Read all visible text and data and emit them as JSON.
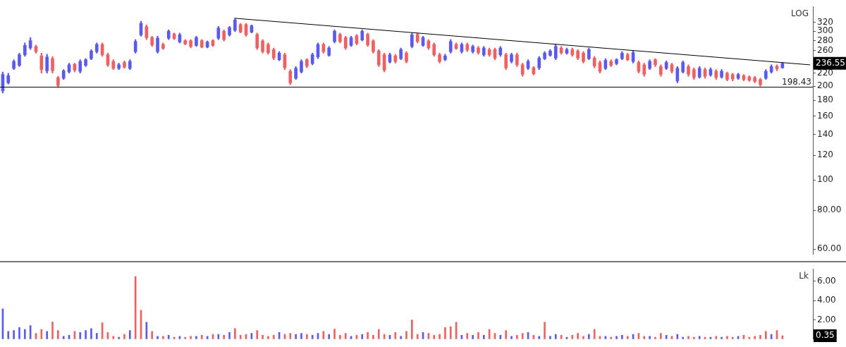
{
  "chart_data": [
    {
      "type": "candlestick",
      "categories": [
        null,
        null,
        null,
        null,
        null,
        null,
        null,
        null,
        null,
        null,
        null,
        null,
        null,
        null,
        null,
        null,
        null,
        null,
        null,
        null,
        null,
        null,
        null,
        null,
        null,
        null,
        null,
        null,
        null,
        null,
        null,
        null,
        null,
        null,
        null,
        null,
        null,
        null,
        null,
        null,
        null,
        null,
        null,
        null,
        null,
        null,
        null,
        null,
        null,
        null,
        null,
        null,
        null,
        null,
        null,
        null,
        null,
        null,
        null,
        null,
        null,
        null,
        null,
        null,
        null,
        null,
        null,
        null,
        null,
        null,
        null,
        null,
        null,
        null,
        null,
        null,
        null,
        null,
        null,
        null,
        null,
        null,
        null,
        null,
        null,
        null,
        null,
        null,
        null,
        null,
        null,
        null,
        null,
        null,
        null,
        null,
        null,
        null,
        null,
        null,
        null,
        null,
        null,
        null,
        null,
        null,
        null,
        null,
        null,
        null,
        null,
        null,
        null,
        null,
        null,
        null,
        null,
        null,
        null,
        null,
        null,
        null,
        null,
        null,
        null,
        null,
        null,
        null,
        null,
        null,
        null,
        null,
        null,
        null,
        null,
        null,
        null,
        null,
        null,
        null,
        null,
        null,
        null,
        null,
        null,
        null,
        null
      ],
      "ohlc": [
        [
          193,
          222,
          190,
          218
        ],
        [
          205,
          220,
          203,
          216
        ],
        [
          228,
          243,
          226,
          240
        ],
        [
          233,
          255,
          231,
          252
        ],
        [
          252,
          275,
          249,
          270
        ],
        [
          265,
          286,
          262,
          280
        ],
        [
          268,
          271,
          255,
          258
        ],
        [
          250,
          255,
          220,
          226
        ],
        [
          224,
          253,
          220,
          248
        ],
        [
          245,
          249,
          220,
          224
        ],
        [
          213,
          215,
          198,
          201
        ],
        [
          212,
          226,
          210,
          224
        ],
        [
          222,
          237,
          220,
          234
        ],
        [
          235,
          237,
          222,
          225
        ],
        [
          223,
          243,
          220,
          240
        ],
        [
          233,
          245,
          231,
          243
        ],
        [
          245,
          262,
          243,
          259
        ],
        [
          258,
          275,
          255,
          272
        ],
        [
          272,
          275,
          249,
          252
        ],
        [
          252,
          255,
          231,
          234
        ],
        [
          240,
          243,
          226,
          228
        ],
        [
          228,
          237,
          226,
          234
        ],
        [
          238,
          241,
          228,
          230
        ],
        [
          228,
          243,
          226,
          240
        ],
        [
          258,
          282,
          255,
          278
        ],
        [
          292,
          323,
          289,
          318
        ],
        [
          310,
          314,
          282,
          286
        ],
        [
          286,
          289,
          268,
          271
        ],
        [
          258,
          289,
          255,
          285
        ],
        [
          272,
          275,
          262,
          264
        ],
        [
          285,
          303,
          282,
          300
        ],
        [
          294,
          296,
          282,
          284
        ],
        [
          277,
          296,
          275,
          292
        ],
        [
          280,
          282,
          271,
          273
        ],
        [
          280,
          282,
          265,
          268
        ],
        [
          270,
          289,
          268,
          286
        ],
        [
          280,
          282,
          265,
          267
        ],
        [
          267,
          279,
          265,
          277
        ],
        [
          280,
          282,
          268,
          270
        ],
        [
          285,
          311,
          282,
          307
        ],
        [
          300,
          303,
          279,
          282
        ],
        [
          292,
          311,
          289,
          308
        ],
        [
          302,
          330,
          299,
          326
        ],
        [
          315,
          318,
          296,
          298
        ],
        [
          315,
          318,
          289,
          292
        ],
        [
          298,
          314,
          296,
          312
        ],
        [
          293,
          296,
          262,
          265
        ],
        [
          279,
          282,
          255,
          258
        ],
        [
          272,
          275,
          253,
          256
        ],
        [
          262,
          265,
          243,
          246
        ],
        [
          243,
          258,
          241,
          255
        ],
        [
          252,
          255,
          226,
          229
        ],
        [
          223,
          226,
          202,
          205
        ],
        [
          212,
          231,
          210,
          228
        ],
        [
          222,
          243,
          220,
          240
        ],
        [
          243,
          245,
          229,
          232
        ],
        [
          236,
          255,
          234,
          252
        ],
        [
          248,
          275,
          245,
          272
        ],
        [
          272,
          275,
          255,
          258
        ],
        [
          251,
          268,
          249,
          265
        ],
        [
          278,
          303,
          275,
          300
        ],
        [
          293,
          296,
          275,
          278
        ],
        [
          286,
          289,
          262,
          265
        ],
        [
          270,
          289,
          268,
          286
        ],
        [
          290,
          293,
          271,
          274
        ],
        [
          281,
          303,
          279,
          300
        ],
        [
          293,
          296,
          268,
          271
        ],
        [
          279,
          282,
          255,
          258
        ],
        [
          259,
          262,
          231,
          234
        ],
        [
          252,
          255,
          222,
          225
        ],
        [
          239,
          255,
          237,
          252
        ],
        [
          250,
          253,
          237,
          240
        ],
        [
          245,
          265,
          243,
          262
        ],
        [
          255,
          258,
          237,
          240
        ],
        [
          268,
          296,
          265,
          292
        ],
        [
          293,
          296,
          275,
          278
        ],
        [
          270,
          289,
          268,
          286
        ],
        [
          279,
          282,
          262,
          265
        ],
        [
          272,
          275,
          249,
          252
        ],
        [
          252,
          255,
          237,
          240
        ],
        [
          243,
          253,
          241,
          250
        ],
        [
          258,
          282,
          255,
          278
        ],
        [
          272,
          275,
          262,
          264
        ],
        [
          258,
          275,
          255,
          272
        ],
        [
          272,
          275,
          258,
          261
        ],
        [
          258,
          271,
          255,
          268
        ],
        [
          265,
          268,
          253,
          256
        ],
        [
          252,
          268,
          249,
          265
        ],
        [
          262,
          265,
          249,
          252
        ],
        [
          262,
          265,
          243,
          246
        ],
        [
          252,
          268,
          249,
          265
        ],
        [
          252,
          255,
          226,
          229
        ],
        [
          240,
          255,
          237,
          252
        ],
        [
          252,
          255,
          231,
          234
        ],
        [
          234,
          237,
          215,
          218
        ],
        [
          228,
          243,
          226,
          240
        ],
        [
          229,
          231,
          217,
          219
        ],
        [
          229,
          249,
          226,
          246
        ],
        [
          245,
          258,
          243,
          255
        ],
        [
          251,
          262,
          249,
          259
        ],
        [
          246,
          272,
          243,
          268
        ],
        [
          265,
          268,
          253,
          256
        ],
        [
          255,
          265,
          253,
          262
        ],
        [
          262,
          265,
          249,
          252
        ],
        [
          259,
          262,
          243,
          246
        ],
        [
          255,
          258,
          237,
          240
        ],
        [
          245,
          265,
          243,
          262
        ],
        [
          246,
          249,
          229,
          232
        ],
        [
          238,
          241,
          220,
          223
        ],
        [
          228,
          245,
          226,
          242
        ],
        [
          240,
          243,
          231,
          233
        ],
        [
          236,
          245,
          234,
          243
        ],
        [
          245,
          258,
          243,
          255
        ],
        [
          252,
          255,
          241,
          243
        ],
        [
          240,
          259,
          237,
          256
        ],
        [
          238,
          241,
          220,
          223
        ],
        [
          234,
          237,
          215,
          218
        ],
        [
          228,
          243,
          226,
          240
        ],
        [
          243,
          245,
          231,
          234
        ],
        [
          231,
          234,
          215,
          218
        ],
        [
          228,
          241,
          226,
          238
        ],
        [
          234,
          237,
          220,
          223
        ],
        [
          208,
          231,
          205,
          228
        ],
        [
          222,
          241,
          220,
          238
        ],
        [
          231,
          234,
          215,
          218
        ],
        [
          226,
          229,
          210,
          213
        ],
        [
          214,
          231,
          212,
          228
        ],
        [
          226,
          229,
          212,
          215
        ],
        [
          217,
          229,
          215,
          226
        ],
        [
          223,
          226,
          210,
          213
        ],
        [
          214,
          226,
          212,
          223
        ],
        [
          220,
          222,
          208,
          210
        ],
        [
          218,
          220,
          208,
          211
        ],
        [
          212,
          220,
          210,
          218
        ],
        [
          216,
          218,
          208,
          210
        ],
        [
          214,
          216,
          207,
          209
        ],
        [
          213,
          215,
          205,
          207
        ],
        [
          210,
          212,
          200,
          202
        ],
        [
          212,
          226,
          210,
          223
        ],
        [
          222,
          234,
          220,
          231
        ],
        [
          232,
          234,
          224,
          227
        ],
        [
          229,
          238,
          228,
          236.55
        ],
        null,
        null,
        null,
        null,
        null
      ],
      "colors": [
        "#5a5af0",
        "#5a5af0",
        "#5a5af0",
        "#5a5af0",
        "#5a5af0",
        "#5a5af0",
        "#f06060",
        "#f06060",
        "#5a5af0",
        "#f06060",
        "#f06060",
        "#5a5af0",
        "#5a5af0",
        "#f06060",
        "#5a5af0",
        "#5a5af0",
        "#5a5af0",
        "#5a5af0",
        "#f06060",
        "#f06060",
        "#f06060",
        "#5a5af0",
        "#f06060",
        "#5a5af0",
        "#5a5af0",
        "#5a5af0",
        "#f06060",
        "#f06060",
        "#5a5af0",
        "#f06060",
        "#5a5af0",
        "#f06060",
        "#5a5af0",
        "#f06060",
        "#f06060",
        "#5a5af0",
        "#f06060",
        "#5a5af0",
        "#f06060",
        "#5a5af0",
        "#f06060",
        "#5a5af0",
        "#5a5af0",
        "#f06060",
        "#f06060",
        "#5a5af0",
        "#f06060",
        "#f06060",
        "#f06060",
        "#f06060",
        "#5a5af0",
        "#f06060",
        "#f06060",
        "#5a5af0",
        "#5a5af0",
        "#f06060",
        "#5a5af0",
        "#5a5af0",
        "#f06060",
        "#5a5af0",
        "#5a5af0",
        "#f06060",
        "#f06060",
        "#5a5af0",
        "#f06060",
        "#5a5af0",
        "#f06060",
        "#f06060",
        "#f06060",
        "#f06060",
        "#5a5af0",
        "#f06060",
        "#5a5af0",
        "#f06060",
        "#5a5af0",
        "#f06060",
        "#5a5af0",
        "#f06060",
        "#f06060",
        "#f06060",
        "#5a5af0",
        "#5a5af0",
        "#f06060",
        "#5a5af0",
        "#f06060",
        "#5a5af0",
        "#f06060",
        "#5a5af0",
        "#f06060",
        "#f06060",
        "#5a5af0",
        "#f06060",
        "#5a5af0",
        "#f06060",
        "#f06060",
        "#5a5af0",
        "#f06060",
        "#5a5af0",
        "#5a5af0",
        "#5a5af0",
        "#5a5af0",
        "#f06060",
        "#5a5af0",
        "#f06060",
        "#f06060",
        "#f06060",
        "#5a5af0",
        "#f06060",
        "#f06060",
        "#5a5af0",
        "#f06060",
        "#5a5af0",
        "#5a5af0",
        "#f06060",
        "#5a5af0",
        "#f06060",
        "#f06060",
        "#5a5af0",
        "#f06060",
        "#f06060",
        "#5a5af0",
        "#f06060",
        "#5a5af0",
        "#5a5af0",
        "#f06060",
        "#f06060",
        "#5a5af0",
        "#f06060",
        "#5a5af0",
        "#f06060",
        "#5a5af0",
        "#f06060",
        "#f06060",
        "#5a5af0",
        "#f06060",
        "#f06060",
        "#f06060",
        "#f06060",
        "#5a5af0",
        "#5a5af0",
        "#f06060",
        "#5a5af0",
        null,
        null,
        null,
        null,
        null
      ],
      "series": [
        {
          "type": "line",
          "color": "#000000",
          "values": [
            null,
            null,
            null,
            null,
            null,
            null,
            null,
            null,
            null,
            null,
            null,
            null,
            null,
            null,
            null,
            null,
            null,
            null,
            null,
            null,
            null,
            null,
            null,
            null,
            null,
            null,
            null,
            null,
            null,
            null,
            null,
            null,
            null,
            null,
            null,
            null,
            null,
            null,
            null,
            null,
            null,
            null,
            330,
            null,
            null,
            null,
            null,
            null,
            null,
            null,
            null,
            null,
            null,
            null,
            null,
            null,
            null,
            null,
            null,
            null,
            null,
            null,
            null,
            null,
            null,
            null,
            null,
            null,
            null,
            null,
            null,
            null,
            null,
            null,
            null,
            null,
            null,
            null,
            null,
            null,
            null,
            null,
            null,
            null,
            null,
            null,
            null,
            null,
            null,
            null,
            null,
            null,
            null,
            null,
            null,
            null,
            null,
            null,
            null,
            null,
            null,
            null,
            null,
            null,
            null,
            null,
            null,
            null,
            null,
            null,
            null,
            null,
            null,
            null,
            null,
            null,
            null,
            null,
            null,
            null,
            null,
            null,
            null,
            null,
            null,
            null,
            null,
            null,
            null,
            null,
            null,
            null,
            null,
            null,
            null,
            null,
            null,
            null,
            null,
            null,
            null,
            null,
            null,
            null,
            null,
            null,
            234
          ]
        }
      ],
      "log": true,
      "ylim": [
        57.7,
        360
      ],
      "yticks": [
        {
          "value": 60,
          "label": "60.00"
        },
        {
          "value": 80,
          "label": "80.00"
        },
        100,
        120,
        140,
        160,
        180,
        200,
        220,
        260,
        280,
        300,
        320
      ],
      "ref_lines": [
        {
          "axis": "y",
          "value": 198.43,
          "label": "198.43",
          "color": "#000000"
        }
      ],
      "annotations": [
        "LOG",
        "236.55"
      ],
      "grid": false,
      "legend": false,
      "tick_labels": "y",
      "marker": "none",
      "line_style": "solid"
    },
    {
      "type": "bar",
      "categories": [
        null,
        null,
        null,
        null,
        null,
        null,
        null,
        null,
        null,
        null,
        null,
        null,
        null,
        null,
        null,
        null,
        null,
        null,
        null,
        null,
        null,
        null,
        null,
        null,
        null,
        null,
        null,
        null,
        null,
        null,
        null,
        null,
        null,
        null,
        null,
        null,
        null,
        null,
        null,
        null,
        null,
        null,
        null,
        null,
        null,
        null,
        null,
        null,
        null,
        null,
        null,
        null,
        null,
        null,
        null,
        null,
        null,
        null,
        null,
        null,
        null,
        null,
        null,
        null,
        null,
        null,
        null,
        null,
        null,
        null,
        null,
        null,
        null,
        null,
        null,
        null,
        null,
        null,
        null,
        null,
        null,
        null,
        null,
        null,
        null,
        null,
        null,
        null,
        null,
        null,
        null,
        null,
        null,
        null,
        null,
        null,
        null,
        null,
        null,
        null,
        null,
        null,
        null,
        null,
        null,
        null,
        null,
        null,
        null,
        null,
        null,
        null,
        null,
        null,
        null,
        null,
        null,
        null,
        null,
        null,
        null,
        null,
        null,
        null,
        null,
        null,
        null,
        null,
        null,
        null,
        null,
        null,
        null,
        null,
        null,
        null,
        null,
        null,
        null,
        null,
        null,
        null,
        null,
        null,
        null,
        null,
        null
      ],
      "values": [
        3.15,
        0.8,
        0.9,
        1.2,
        1.0,
        1.4,
        0.6,
        1.0,
        0.8,
        1.8,
        0.9,
        0.3,
        0.4,
        0.8,
        0.7,
        0.9,
        1.1,
        0.6,
        1.7,
        0.7,
        0.3,
        0.2,
        0.5,
        0.9,
        6.5,
        3.0,
        1.75,
        0.8,
        0.3,
        0.3,
        0.4,
        0.2,
        0.3,
        0.2,
        0.3,
        0.3,
        0.4,
        0.3,
        0.5,
        0.5,
        0.4,
        0.7,
        1.1,
        0.4,
        0.5,
        0.6,
        0.9,
        0.4,
        0.3,
        0.4,
        0.7,
        0.5,
        0.6,
        0.5,
        0.6,
        0.5,
        0.4,
        0.6,
        0.8,
        0.5,
        1.05,
        0.4,
        0.6,
        0.3,
        0.4,
        0.5,
        0.7,
        0.4,
        1.0,
        0.5,
        0.4,
        0.7,
        0.3,
        0.8,
        2.0,
        0.5,
        0.7,
        0.6,
        0.4,
        0.5,
        1.2,
        1.3,
        1.75,
        0.4,
        0.6,
        0.4,
        0.7,
        0.4,
        1.0,
        0.6,
        0.4,
        0.9,
        0.3,
        0.4,
        0.6,
        0.7,
        0.4,
        0.3,
        1.75,
        0.3,
        0.5,
        0.4,
        0.2,
        0.4,
        0.6,
        0.3,
        0.5,
        1.0,
        0.3,
        0.3,
        0.2,
        0.3,
        0.4,
        0.3,
        0.5,
        0.6,
        0.3,
        0.3,
        0.2,
        0.6,
        0.4,
        0.3,
        0.5,
        0.2,
        0.3,
        0.2,
        0.3,
        0.2,
        0.2,
        0.3,
        0.2,
        0.3,
        0.2,
        0.3,
        0.4,
        0.2,
        0.3,
        0.4,
        0.8,
        0.5,
        0.9,
        0.35,
        null,
        null,
        null,
        null,
        null
      ],
      "colors": [
        "#5a5af0",
        "#5a5af0",
        "#5a5af0",
        "#5a5af0",
        "#5a5af0",
        "#5a5af0",
        "#f06060",
        "#f06060",
        "#5a5af0",
        "#f06060",
        "#f06060",
        "#5a5af0",
        "#5a5af0",
        "#f06060",
        "#5a5af0",
        "#5a5af0",
        "#5a5af0",
        "#5a5af0",
        "#f06060",
        "#f06060",
        "#f06060",
        "#5a5af0",
        "#f06060",
        "#5a5af0",
        "#f06060",
        "#f06060",
        "#5a5af0",
        "#f06060",
        "#5a5af0",
        "#f06060",
        "#5a5af0",
        "#f06060",
        "#5a5af0",
        "#f06060",
        "#f06060",
        "#5a5af0",
        "#f06060",
        "#5a5af0",
        "#f06060",
        "#5a5af0",
        "#f06060",
        "#5a5af0",
        "#f06060",
        "#f06060",
        "#f06060",
        "#5a5af0",
        "#f06060",
        "#f06060",
        "#f06060",
        "#f06060",
        "#5a5af0",
        "#f06060",
        "#f06060",
        "#5a5af0",
        "#5a5af0",
        "#f06060",
        "#5a5af0",
        "#5a5af0",
        "#f06060",
        "#5a5af0",
        "#f06060",
        "#f06060",
        "#f06060",
        "#5a5af0",
        "#f06060",
        "#5a5af0",
        "#f06060",
        "#f06060",
        "#f06060",
        "#f06060",
        "#5a5af0",
        "#f06060",
        "#5a5af0",
        "#f06060",
        "#f06060",
        "#f06060",
        "#5a5af0",
        "#f06060",
        "#f06060",
        "#f06060",
        "#f06060",
        "#f06060",
        "#f06060",
        "#5a5af0",
        "#f06060",
        "#5a5af0",
        "#f06060",
        "#5a5af0",
        "#f06060",
        "#f06060",
        "#5a5af0",
        "#f06060",
        "#5a5af0",
        "#f06060",
        "#f06060",
        "#5a5af0",
        "#f06060",
        "#5a5af0",
        "#f06060",
        "#5a5af0",
        "#5a5af0",
        "#f06060",
        "#5a5af0",
        "#f06060",
        "#f06060",
        "#f06060",
        "#5a5af0",
        "#f06060",
        "#f06060",
        "#5a5af0",
        "#f06060",
        "#5a5af0",
        "#5a5af0",
        "#f06060",
        "#5a5af0",
        "#f06060",
        "#f06060",
        "#5a5af0",
        "#f06060",
        "#f06060",
        "#5a5af0",
        "#f06060",
        "#5a5af0",
        "#5a5af0",
        "#f06060",
        "#f06060",
        "#5a5af0",
        "#f06060",
        "#5a5af0",
        "#f06060",
        "#5a5af0",
        "#f06060",
        "#f06060",
        "#5a5af0",
        "#f06060",
        "#f06060",
        "#f06060",
        "#f06060",
        "#f06060",
        "#5a5af0",
        "#f06060",
        "#f06060",
        null,
        null,
        null,
        null,
        null
      ],
      "ylim": [
        0,
        7.3
      ],
      "yticks": [
        {
          "value": 2,
          "label": "2.00"
        },
        {
          "value": 4,
          "label": "4.00"
        },
        {
          "value": 6,
          "label": "6.00"
        }
      ],
      "annotations": [
        "Lk",
        "0.35"
      ],
      "grid": false,
      "legend": false,
      "tick_labels": "y"
    }
  ]
}
